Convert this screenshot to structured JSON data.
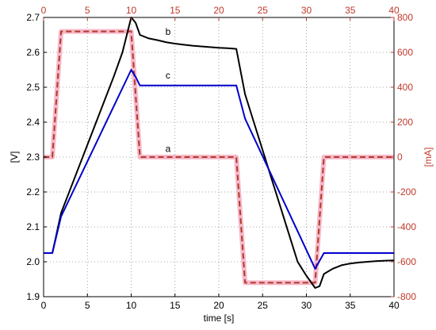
{
  "chart_data": {
    "type": "line",
    "title": "",
    "xlabel": "time [s]",
    "xlim": [
      0,
      40
    ],
    "x_ticks": [
      0,
      5,
      10,
      15,
      20,
      25,
      30,
      35,
      40
    ],
    "top_axis_ticks": [
      0,
      5,
      10,
      15,
      20,
      25,
      30,
      35,
      40
    ],
    "ylabel_left": "[V]",
    "ylim_left": [
      1.9,
      2.7
    ],
    "y_ticks_left": [
      1.9,
      2.0,
      2.1,
      2.2,
      2.3,
      2.4,
      2.5,
      2.6,
      2.7
    ],
    "ylabel_right": "[mA]",
    "ylim_right": [
      -800,
      800
    ],
    "y_ticks_right": [
      -800,
      -600,
      -400,
      -200,
      0,
      200,
      400,
      600,
      800
    ],
    "grid": true,
    "colors": {
      "left_axis": "#000000",
      "right_axis": "#c0392b",
      "series_a": "#b03a2e",
      "series_a_shadow": "#f6b8c8",
      "series_b": "#000000",
      "series_c": "#0000cc",
      "grid": "#8c8c8c"
    },
    "series": [
      {
        "name": "a",
        "axis": "right",
        "style": "dashed",
        "label_pos": [
          14.2,
          30
        ],
        "x": [
          0,
          1,
          2,
          10,
          11,
          22,
          23,
          31,
          32,
          40
        ],
        "y": [
          0,
          0,
          720,
          720,
          0,
          0,
          -720,
          -720,
          0,
          0
        ]
      },
      {
        "name": "b",
        "axis": "left",
        "style": "solid",
        "label_pos": [
          14.2,
          2.65
        ],
        "x": [
          0,
          1,
          2,
          3,
          4,
          5,
          6,
          7,
          8,
          9,
          10,
          10.5,
          11,
          12,
          13,
          14,
          15,
          16,
          17,
          18,
          19,
          20,
          21,
          22,
          23,
          24,
          25,
          26,
          27,
          28,
          29,
          30,
          31,
          31.5,
          32,
          33,
          34,
          35,
          36,
          37,
          38,
          39,
          40
        ],
        "y": [
          2.025,
          2.025,
          2.14,
          2.205,
          2.27,
          2.335,
          2.4,
          2.465,
          2.53,
          2.6,
          2.7,
          2.685,
          2.65,
          2.64,
          2.635,
          2.629,
          2.625,
          2.622,
          2.619,
          2.617,
          2.615,
          2.613,
          2.612,
          2.61,
          2.48,
          2.4,
          2.32,
          2.24,
          2.16,
          2.08,
          2.0,
          1.96,
          1.925,
          1.93,
          1.965,
          1.98,
          1.99,
          1.995,
          1.998,
          2.0,
          2.002,
          2.003,
          2.004
        ]
      },
      {
        "name": "c",
        "axis": "left",
        "style": "solid",
        "label_pos": [
          14.2,
          2.525
        ],
        "x": [
          0,
          1,
          2,
          10,
          10.5,
          11,
          12,
          22,
          23,
          31,
          32,
          40
        ],
        "y": [
          2.025,
          2.025,
          2.13,
          2.55,
          2.53,
          2.505,
          2.505,
          2.505,
          2.41,
          1.98,
          2.025,
          2.025
        ]
      }
    ]
  }
}
